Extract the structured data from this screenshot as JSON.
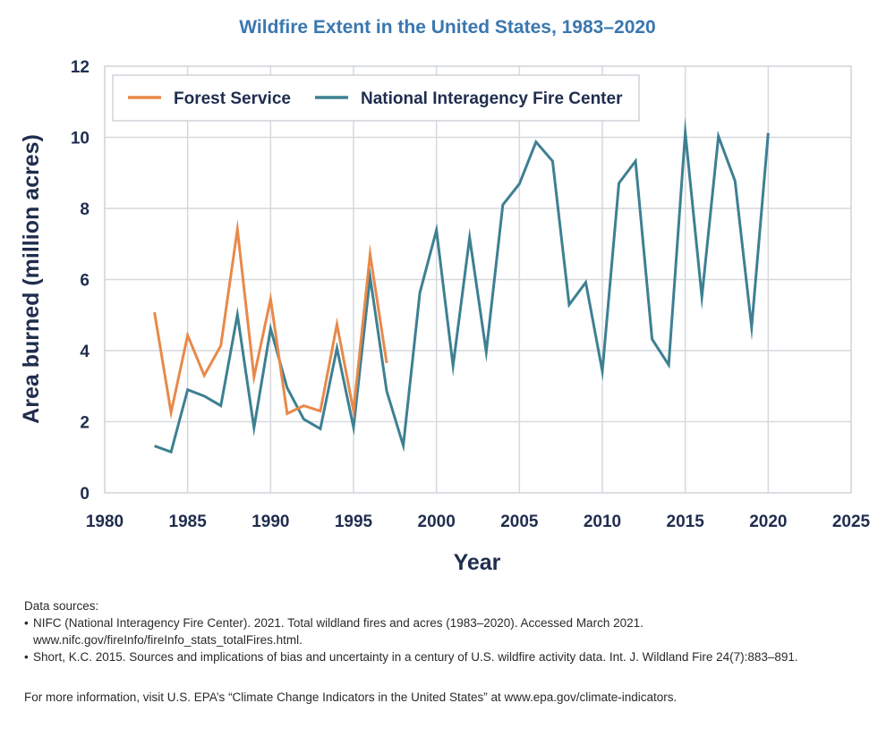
{
  "chart_data": {
    "type": "line",
    "title": "Wildfire Extent in the United States, 1983–2020",
    "xlabel": "Year",
    "ylabel": "Area burned (million acres)",
    "xlim": [
      1980,
      2025
    ],
    "ylim": [
      0,
      12
    ],
    "xticks": [
      1980,
      1985,
      1990,
      1995,
      2000,
      2005,
      2010,
      2015,
      2020,
      2025
    ],
    "yticks": [
      0,
      2,
      4,
      6,
      8,
      10,
      12
    ],
    "grid": true,
    "legend_position": "top-left",
    "series": [
      {
        "name": "Forest Service",
        "color": "#e8894a",
        "x": [
          1983,
          1984,
          1985,
          1986,
          1987,
          1988,
          1989,
          1990,
          1991,
          1992,
          1993,
          1994,
          1995,
          1996,
          1997
        ],
        "values": [
          5.08,
          2.26,
          4.43,
          3.3,
          4.14,
          7.41,
          3.26,
          5.45,
          2.23,
          2.45,
          2.3,
          4.74,
          2.3,
          6.71,
          3.65
        ]
      },
      {
        "name": "National Interagency Fire Center",
        "color": "#3d8092",
        "x": [
          1983,
          1984,
          1985,
          1986,
          1987,
          1988,
          1989,
          1990,
          1991,
          1992,
          1993,
          1994,
          1995,
          1996,
          1997,
          1998,
          1999,
          2000,
          2001,
          2002,
          2003,
          2004,
          2005,
          2006,
          2007,
          2008,
          2009,
          2010,
          2011,
          2012,
          2013,
          2014,
          2015,
          2016,
          2017,
          2018,
          2019,
          2020
        ],
        "values": [
          1.32,
          1.15,
          2.9,
          2.72,
          2.45,
          5.01,
          1.83,
          4.62,
          2.95,
          2.07,
          1.8,
          4.07,
          1.84,
          6.07,
          2.86,
          1.33,
          5.63,
          7.39,
          3.57,
          7.18,
          3.96,
          8.1,
          8.69,
          9.87,
          9.33,
          5.29,
          5.92,
          3.42,
          8.71,
          9.33,
          4.32,
          3.6,
          10.13,
          5.51,
          10.03,
          8.77,
          4.66,
          10.12
        ]
      }
    ]
  },
  "notes": {
    "heading": "Data sources:",
    "sources": [
      "NIFC (National Interagency Fire Center). 2021. Total wildland fires and acres (1983–2020). Accessed March 2021. www.nifc.gov/fireInfo/fireInfo_stats_totalFires.html.",
      "Short, K.C. 2015. Sources and implications of bias and uncertainty in a century of U.S. wildfire activity data. Int. J. Wildland Fire 24(7):883–891."
    ],
    "more_info": "For more information, visit U.S. EPA’s “Climate Change Indicators in the United States” at www.epa.gov/climate-indicators."
  }
}
